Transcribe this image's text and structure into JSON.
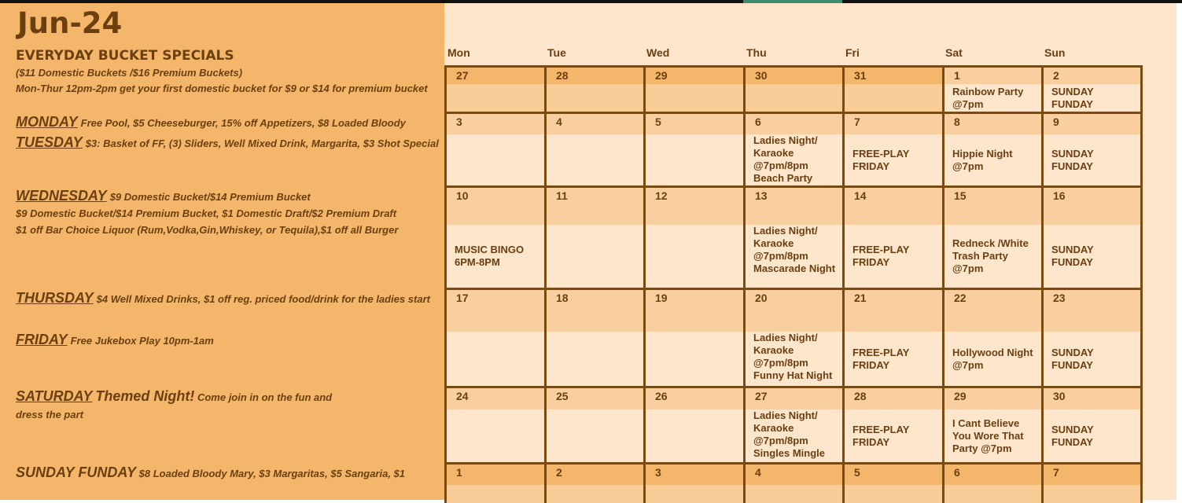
{
  "title": "Jun-24",
  "specials": {
    "heading": "EVERYDAY BUCKET SPECIALS",
    "line1": "($11 Domestic Buckets /$16 Premium Buckets)",
    "line2": "Mon-Thur 12pm-2pm get your first domestic bucket for $9 or $14 for premium bucket",
    "monday": {
      "day": "MONDAY",
      "text": "Free Pool, $5 Cheeseburger, 15% off Appetizers, $8 Loaded Bloody"
    },
    "tuesday": {
      "day": "TUESDAY",
      "text": "$3:  Basket of FF, (3) Sliders, Well Mixed Drink, Margarita, $3 Shot Special"
    },
    "wednesday": {
      "day": "WEDNESDAY",
      "text": "$9 Domestic Bucket/$14 Premium Bucket",
      "line2": "$9 Domestic Bucket/$14 Premium Bucket, $1 Domestic Draft/$2 Premium Draft",
      "line3": "$1 off Bar Choice Liquor (Rum,Vodka,Gin,Whiskey, or Tequila),$1 off all Burger"
    },
    "thursday": {
      "day": "THURSDAY",
      "text": "$4 Well Mixed Drinks, $1 off reg. priced food/drink for the ladies start"
    },
    "friday": {
      "day": "FRIDAY",
      "text": "Free Jukebox Play 10pm-1am"
    },
    "saturday": {
      "day": "SATURDAY",
      "big": "Themed Night!",
      "text": "Come join in on the fun and",
      "line2": "dress the part"
    },
    "sunday": {
      "day": "SUNDAY FUNDAY",
      "text": "$8 Loaded Bloody Mary, $3 Margaritas, $5 Sangaria, $1"
    }
  },
  "calendar": {
    "days_of_week": [
      "Mon",
      "Tue",
      "Wed",
      "Thu",
      "Fri",
      "Sat",
      "Sun"
    ],
    "weeks": [
      {
        "days": [
          {
            "n": "27",
            "other": true
          },
          {
            "n": "28",
            "other": true
          },
          {
            "n": "29",
            "other": true
          },
          {
            "n": "30",
            "other": true
          },
          {
            "n": "31",
            "other": true
          },
          {
            "n": "1",
            "ev": "Rainbow Party\n@7pm"
          },
          {
            "n": "2",
            "ev": "SUNDAY\nFUNDAY"
          }
        ]
      },
      {
        "days": [
          {
            "n": "3"
          },
          {
            "n": "4"
          },
          {
            "n": "5"
          },
          {
            "n": "6",
            "ev": "Ladies Night/\nKaraoke\n@7pm/8pm\nBeach Party"
          },
          {
            "n": "7",
            "ev": "FREE-PLAY\nFRIDAY"
          },
          {
            "n": "8",
            "ev": "Hippie Night\n@7pm"
          },
          {
            "n": "9",
            "ev": "SUNDAY\nFUNDAY"
          }
        ]
      },
      {
        "days": [
          {
            "n": "10",
            "ev": "MUSIC BINGO\n6PM-8PM"
          },
          {
            "n": "11"
          },
          {
            "n": "12"
          },
          {
            "n": "13",
            "ev": "Ladies Night/\nKaraoke\n@7pm/8pm\nMascarade Night"
          },
          {
            "n": "14",
            "ev": "FREE-PLAY\nFRIDAY"
          },
          {
            "n": "15",
            "ev": "Redneck /White\nTrash Party\n@7pm"
          },
          {
            "n": "16",
            "ev": "SUNDAY\nFUNDAY"
          }
        ]
      },
      {
        "days": [
          {
            "n": "17"
          },
          {
            "n": "18"
          },
          {
            "n": "19"
          },
          {
            "n": "20",
            "ev": "Ladies Night/\nKaraoke\n@7pm/8pm\nFunny Hat Night"
          },
          {
            "n": "21",
            "ev": "FREE-PLAY\nFRIDAY"
          },
          {
            "n": "22",
            "ev": "Hollywood Night\n@7pm"
          },
          {
            "n": "23",
            "ev": "SUNDAY\nFUNDAY"
          }
        ]
      },
      {
        "days": [
          {
            "n": "24"
          },
          {
            "n": "25"
          },
          {
            "n": "26"
          },
          {
            "n": "27",
            "ev": "Ladies Night/\nKaraoke\n@7pm/8pm\nSingles Mingle"
          },
          {
            "n": "28",
            "ev": "FREE-PLAY\nFRIDAY"
          },
          {
            "n": "29",
            "ev": "I Cant Believe\nYou Wore That\nParty @7pm"
          },
          {
            "n": "30",
            "ev": "SUNDAY\nFUNDAY"
          }
        ]
      },
      {
        "days": [
          {
            "n": "1",
            "other": true
          },
          {
            "n": "2",
            "other": true
          },
          {
            "n": "3",
            "other": true
          },
          {
            "n": "4",
            "other": true
          },
          {
            "n": "5",
            "other": true
          },
          {
            "n": "6",
            "other": true
          },
          {
            "n": "7",
            "other": true
          }
        ]
      }
    ]
  },
  "colors": {
    "text": "#6b3f10",
    "border": "#7a4a10",
    "left_panel": "#f3b66a",
    "band_current": "#f9cf9f",
    "content_current": "#fde6cc",
    "band_other": "#f3b66a",
    "content_other": "#f9cc97"
  }
}
